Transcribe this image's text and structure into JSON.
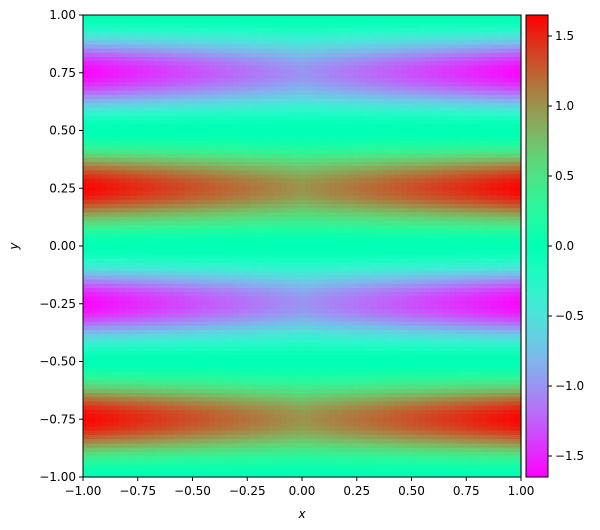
{
  "chart_data": {
    "type": "heatmap",
    "title": "",
    "xlabel": "x",
    "ylabel": "y",
    "xlim": [
      -1.0,
      1.0
    ],
    "ylim": [
      -1.0,
      1.0
    ],
    "x_ticks": [
      -1.0,
      -0.75,
      -0.5,
      -0.25,
      0.0,
      0.25,
      0.5,
      0.75,
      1.0
    ],
    "x_tick_labels": [
      "−1.00",
      "−0.75",
      "−0.50",
      "−0.25",
      "0.00",
      "0.25",
      "0.50",
      "0.75",
      "1.00"
    ],
    "y_ticks": [
      -1.0,
      -0.75,
      -0.5,
      -0.25,
      0.0,
      0.25,
      0.5,
      0.75,
      1.0
    ],
    "y_tick_labels": [
      "−1.00",
      "−0.75",
      "−0.50",
      "−0.25",
      "0.00",
      "0.25",
      "0.50",
      "0.75",
      "1.00"
    ],
    "colormap": "rainbow",
    "colorbar": {
      "range": [
        -1.65,
        1.65
      ],
      "ticks": [
        -1.5,
        -1.0,
        -0.5,
        0.0,
        0.5,
        1.0,
        1.5
      ],
      "tick_labels": [
        "−1.5",
        "−1.0",
        "−0.5",
        "0.0",
        "0.5",
        "1.0",
        "1.5"
      ]
    },
    "grid": false,
    "field": {
      "description_of_values": "sampled field values z(x, y) read from the colour scale",
      "y_samples": [
        1.0,
        0.75,
        0.5,
        0.25,
        0.0,
        -0.25,
        -0.5,
        -0.75,
        -1.0
      ],
      "x_samples": [
        -1.0,
        0.0,
        1.0
      ],
      "values": [
        [
          0.0,
          0.0,
          0.0
        ],
        [
          -1.63,
          -1.0,
          -1.63
        ],
        [
          0.0,
          0.0,
          0.0
        ],
        [
          1.63,
          1.0,
          1.63
        ],
        [
          0.0,
          0.0,
          0.0
        ],
        [
          -1.63,
          -1.0,
          -1.63
        ],
        [
          0.0,
          0.0,
          0.0
        ],
        [
          1.63,
          1.0,
          1.63
        ],
        [
          0.0,
          0.0,
          0.0
        ]
      ]
    }
  }
}
